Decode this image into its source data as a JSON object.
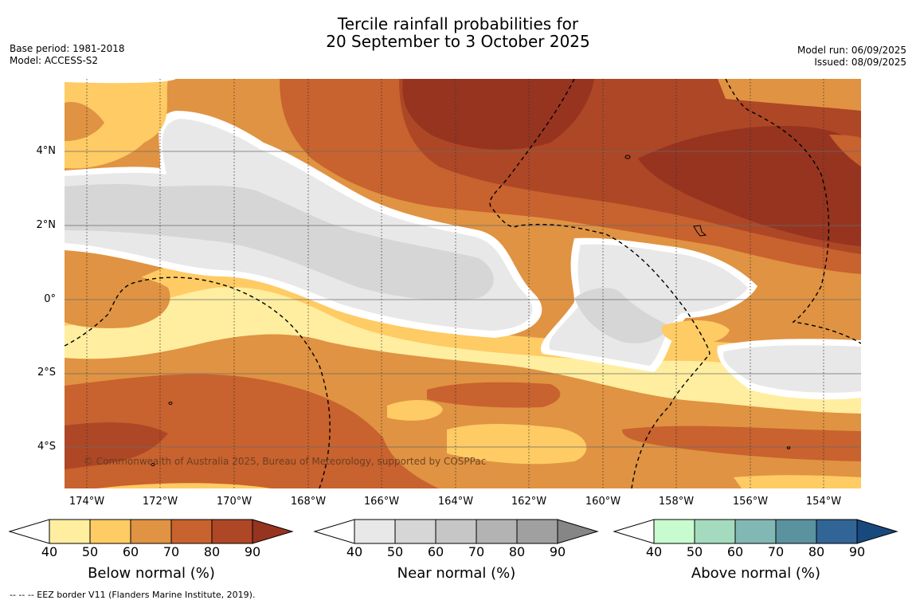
{
  "title": {
    "line1": "Tercile rainfall probabilities for",
    "line2": "20 September to 3 October 2025"
  },
  "meta_left": {
    "base_period": "Base period: 1981-2018",
    "model": "Model: ACCESS-S2"
  },
  "meta_right": {
    "model_run": "Model run: 06/09/2025",
    "issued": "Issued: 08/09/2025"
  },
  "map": {
    "lat_labels": [
      "4°N",
      "2°N",
      "0°",
      "2°S",
      "4°S"
    ],
    "lon_labels": [
      "174°W",
      "172°W",
      "170°W",
      "168°W",
      "166°W",
      "164°W",
      "162°W",
      "160°W",
      "158°W",
      "156°W",
      "154°W"
    ],
    "copyright": "© Commonwealth of Australia 2025, Bureau of Meteorology, supported by COSPPac",
    "colors": {
      "below": [
        "#ffeea0",
        "#fecb64",
        "#e09342",
        "#c8622e",
        "#ad4726",
        "#963420"
      ],
      "near": [
        "#e8e8e8",
        "#d6d6d6",
        "#c6c6c6",
        "#b3b3b3",
        "#a0a0a0",
        "#868686"
      ],
      "above": [
        "#c8fcd0",
        "#a4dbbe",
        "#82b8b3",
        "#5a929f",
        "#316596",
        "#17497e"
      ]
    }
  },
  "legends": [
    {
      "title": "Below normal (%)",
      "ticks": [
        "40",
        "50",
        "60",
        "70",
        "80",
        "90"
      ]
    },
    {
      "title": "Near normal (%)",
      "ticks": [
        "40",
        "50",
        "60",
        "70",
        "80",
        "90"
      ]
    },
    {
      "title": "Above normal (%)",
      "ticks": [
        "40",
        "50",
        "60",
        "70",
        "80",
        "90"
      ]
    }
  ],
  "footnote": "--  --  -- EEZ border V11 (Flanders Marine Institute, 2019)."
}
